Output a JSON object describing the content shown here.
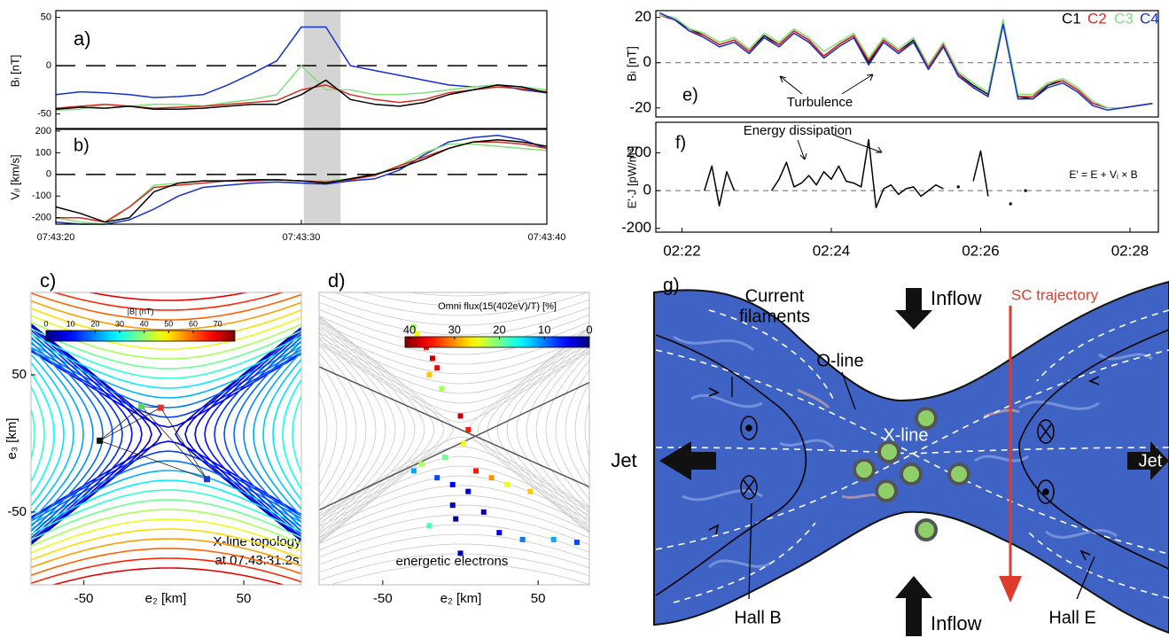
{
  "chart_data": [
    {
      "type": "line",
      "panel_label": "a)",
      "ylabel": "Bₗ [nT]",
      "x": [
        20,
        21,
        22,
        23,
        24,
        25,
        26,
        27,
        28,
        29,
        30,
        31,
        32,
        33,
        34,
        35,
        36,
        37,
        38,
        39,
        40
      ],
      "series": [
        {
          "color": "#1530d0",
          "values": [
            -30,
            -27,
            -28,
            -30,
            -33,
            -32,
            -30,
            -20,
            -8,
            5,
            40,
            40,
            0,
            -5,
            -10,
            -15,
            -20,
            -22,
            -20,
            -25,
            -28
          ]
        },
        {
          "color": "#7fe07a",
          "values": [
            -46,
            -45,
            -40,
            -42,
            -40,
            -40,
            -42,
            -38,
            -35,
            -30,
            0,
            -25,
            -25,
            -30,
            -30,
            -28,
            -25,
            -22,
            -20,
            -22,
            -25
          ]
        },
        {
          "color": "#d42a1e",
          "values": [
            -44,
            -42,
            -40,
            -42,
            -44,
            -43,
            -42,
            -40,
            -38,
            -36,
            -25,
            -20,
            -30,
            -35,
            -38,
            -35,
            -28,
            -25,
            -22,
            -24,
            -27
          ]
        },
        {
          "color": "#000000",
          "values": [
            -45,
            -43,
            -44,
            -42,
            -45,
            -45,
            -44,
            -42,
            -40,
            -40,
            -30,
            -15,
            -35,
            -40,
            -42,
            -38,
            -30,
            -25,
            -20,
            -22,
            -28
          ]
        }
      ],
      "xlim": [
        20,
        40
      ],
      "ylim": [
        -65,
        57
      ],
      "yticks": [
        50,
        0,
        -50
      ],
      "hline": 0,
      "highlight": [
        30.1,
        31.6
      ]
    },
    {
      "type": "line",
      "panel_label": "b)",
      "ylabel": "Vᵢₗ [km/s]",
      "x": [
        20,
        21,
        22,
        23,
        24,
        25,
        26,
        27,
        28,
        29,
        30,
        31,
        32,
        33,
        34,
        35,
        36,
        37,
        38,
        39,
        40
      ],
      "series": [
        {
          "color": "#1530d0",
          "values": [
            -220,
            -230,
            -230,
            -210,
            -160,
            -100,
            -60,
            -50,
            -40,
            -35,
            -40,
            -45,
            -30,
            -20,
            20,
            90,
            150,
            170,
            180,
            160,
            120
          ]
        },
        {
          "color": "#7fe07a",
          "values": [
            -200,
            -220,
            -230,
            -150,
            -50,
            -40,
            -30,
            -30,
            -25,
            -25,
            -30,
            -30,
            -20,
            0,
            40,
            100,
            140,
            140,
            130,
            120,
            110
          ]
        },
        {
          "color": "#d42a1e",
          "values": [
            -200,
            -200,
            -220,
            -150,
            -60,
            -50,
            -40,
            -30,
            -30,
            -25,
            -30,
            -35,
            -25,
            -5,
            40,
            80,
            120,
            150,
            150,
            140,
            120
          ]
        },
        {
          "color": "#000000",
          "values": [
            -150,
            -180,
            -220,
            -200,
            -80,
            -40,
            -30,
            -30,
            -25,
            -25,
            -30,
            -40,
            -20,
            0,
            30,
            70,
            120,
            150,
            160,
            150,
            130
          ]
        }
      ],
      "xlim": [
        20,
        40
      ],
      "ylim": [
        -230,
        208
      ],
      "yticks": [
        200,
        100,
        0,
        -100,
        -200
      ],
      "xticks": [
        {
          "value": 20,
          "label": "07:43:20"
        },
        {
          "value": 30,
          "label": "07:43:30"
        },
        {
          "value": 40,
          "label": "07:43:40"
        }
      ],
      "hline": 0,
      "highlight": [
        30.1,
        31.6
      ]
    },
    {
      "type": "line",
      "panel_label": "e)",
      "ylabel": "Bₗ [nT]",
      "annotations": [
        "Turbulence"
      ],
      "x": [
        21.7,
        21.9,
        22.1,
        22.3,
        22.5,
        22.7,
        22.9,
        23.1,
        23.3,
        23.5,
        23.7,
        23.9,
        24.1,
        24.3,
        24.5,
        24.7,
        24.9,
        25.1,
        25.3,
        25.5,
        25.7,
        25.9,
        26.1,
        26.3,
        26.5,
        26.7,
        26.9,
        27.1,
        27.3,
        27.5,
        27.7,
        27.9,
        28.1,
        28.3
      ],
      "series": [
        {
          "name": "C1",
          "color": "#000000",
          "values": [
            21,
            19,
            15,
            12,
            8,
            10,
            5,
            12,
            8,
            14,
            10,
            3,
            8,
            12,
            0,
            10,
            5,
            10,
            -2,
            8,
            -5,
            -10,
            -14,
            18,
            -15,
            -16,
            -10,
            -8,
            -12,
            -18,
            -20,
            -20,
            -19,
            -18
          ]
        },
        {
          "name": "C2",
          "color": "#e0231c",
          "values": [
            21,
            19,
            14,
            12,
            8,
            10,
            5,
            11,
            8,
            14,
            10,
            3,
            8,
            12,
            1,
            10,
            5,
            9,
            -2,
            8,
            -5,
            -11,
            -15,
            17,
            -15,
            -15,
            -9,
            -8,
            -12,
            -18,
            -20,
            -20,
            -19,
            -18
          ]
        },
        {
          "name": "C3",
          "color": "#7fe07a",
          "values": [
            21,
            20,
            15,
            13,
            9,
            11,
            6,
            13,
            9,
            15,
            11,
            5,
            9,
            13,
            2,
            11,
            6,
            11,
            -1,
            9,
            -4,
            -9,
            -13,
            19,
            -14,
            -14,
            -9,
            -7,
            -11,
            -17,
            -20,
            -20,
            -19,
            -18
          ]
        },
        {
          "name": "C4",
          "color": "#1530d0",
          "values": [
            22,
            19,
            14,
            11,
            7,
            9,
            4,
            11,
            7,
            13,
            9,
            2,
            7,
            11,
            -1,
            9,
            4,
            9,
            -3,
            7,
            -6,
            -11,
            -15,
            17,
            -16,
            -16,
            -11,
            -9,
            -13,
            -19,
            -21,
            -20,
            -19,
            -18
          ]
        }
      ],
      "xlim": [
        21.65,
        28.38
      ],
      "ylim": [
        -24,
        23
      ],
      "yticks": [
        20,
        0,
        -20
      ],
      "hline": 0
    },
    {
      "type": "line",
      "panel_label": "f)",
      "ylabel": "E'·J [pW/m³]",
      "annotations": [
        "Energy dissipation",
        "E′ = E + Vᵢ × B"
      ],
      "x": [
        22.3,
        22.4,
        22.5,
        22.6,
        22.7,
        22.8,
        22.9,
        23.0,
        23.1,
        23.2,
        23.3,
        23.4,
        23.5,
        23.6,
        23.7,
        23.8,
        23.9,
        24.0,
        24.1,
        24.2,
        24.3,
        24.4,
        24.5,
        24.6,
        24.7,
        24.8,
        24.9,
        25.0,
        25.1,
        25.2,
        25.3,
        25.4,
        25.5,
        25.6,
        25.7,
        25.8,
        25.9,
        26.0,
        26.1,
        26.2,
        26.3,
        26.4,
        26.5,
        26.6
      ],
      "series": [
        {
          "color": "#000000",
          "values": [
            0,
            130,
            -80,
            100,
            0,
            null,
            null,
            null,
            null,
            0,
            60,
            150,
            20,
            40,
            80,
            30,
            100,
            60,
            130,
            50,
            40,
            20,
            270,
            -90,
            10,
            30,
            -20,
            10,
            20,
            -30,
            0,
            30,
            10,
            null,
            20,
            null,
            50,
            210,
            -30,
            null,
            null,
            -70,
            null,
            0
          ]
        }
      ],
      "xlim": [
        21.65,
        28.38
      ],
      "ylim": [
        -220,
        362
      ],
      "yticks": [
        200,
        0,
        -200
      ],
      "xticks": [
        {
          "value": 22,
          "label": "02:22"
        },
        {
          "value": 24,
          "label": "02:24"
        },
        {
          "value": 26,
          "label": "02:26"
        },
        {
          "value": 28,
          "label": "02:28"
        }
      ],
      "hline": 0
    },
    {
      "type": "scatter",
      "panel_label": "c)",
      "xlabel": "e₂ [km]",
      "ylabel": "e₃ [km]",
      "annotations": [
        "X-line topology",
        "at 07:43:31.2s"
      ],
      "x": [
        -40,
        -14,
        -2,
        27
      ],
      "y": [
        2,
        27,
        26,
        -26
      ],
      "colors": [
        "#111111",
        "#5fd35f",
        "#e03030",
        "#1a3fd0"
      ],
      "connect": true,
      "xlim": [
        -83,
        86
      ],
      "ylim": [
        -103,
        110
      ],
      "xticks": [
        -50,
        50
      ],
      "yticks": [
        50,
        -50
      ],
      "colorbar": {
        "label": "|B| (nT)",
        "lim": [
          0,
          77
        ],
        "ticks": [
          0,
          10,
          20,
          30,
          40,
          50,
          60,
          70
        ]
      }
    },
    {
      "type": "scatter",
      "panel_label": "d)",
      "xlabel": "e₂ [km]",
      "annotations": [
        "energetic electrons"
      ],
      "x": [
        -30,
        -28,
        -25,
        -22,
        -18,
        -15,
        -20,
        -12,
        0,
        5,
        2,
        -10,
        -25,
        -30,
        -15,
        -5,
        5,
        10,
        20,
        30,
        45,
        -5,
        -3,
        15,
        25,
        40,
        60,
        75,
        0,
        -20
      ],
      "y": [
        85,
        80,
        75,
        70,
        62,
        55,
        50,
        40,
        20,
        10,
        0,
        -10,
        -15,
        -20,
        -25,
        -30,
        -35,
        -20,
        -25,
        -30,
        -35,
        -45,
        -55,
        -50,
        -65,
        -70,
        -70,
        -72,
        -80,
        -60
      ],
      "values": [
        22,
        25,
        30,
        35,
        38,
        36,
        28,
        22,
        38,
        35,
        25,
        20,
        22,
        12,
        8,
        5,
        3,
        35,
        30,
        25,
        28,
        2,
        1,
        3,
        5,
        10,
        12,
        8,
        2,
        18
      ],
      "xlim": [
        -91,
        83
      ],
      "ylim": [
        -103,
        110
      ],
      "xticks": [
        -50,
        50
      ],
      "colorbar": {
        "label": "Omni flux(15(402eV)/T) [%]",
        "lim": [
          41,
          0
        ],
        "ticks": [
          40,
          30,
          20,
          10,
          0
        ]
      }
    }
  ],
  "diagram": {
    "panel_label": "g)",
    "current_filaments": [
      "Current",
      "filaments"
    ],
    "o_line": "O-line",
    "x_line": "X-line",
    "inflow_top": "Inflow",
    "inflow_bottom": "Inflow",
    "sc_trajectory": "SC trajectory",
    "jet_left": "Jet",
    "jet_right": "Jet",
    "hall_b": "Hall B",
    "hall_e": "Hall E"
  }
}
